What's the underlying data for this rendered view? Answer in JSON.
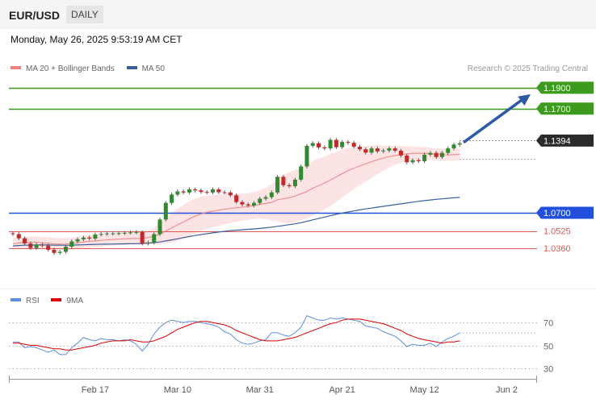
{
  "header": {
    "symbol": "EUR/USD",
    "timeframe": "DAILY"
  },
  "timestamp": "Monday, May 26, 2025 9:53:19 AM CET",
  "legend": {
    "ma20": "MA 20 + Bollinger Bands",
    "ma50": "MA 50",
    "ma20_color": "#f08080",
    "ma50_color": "#3a5f9f",
    "band_color": "#fde4e4"
  },
  "credit": "Research © 2025 Trading Central",
  "rsi_legend": {
    "rsi": "RSI",
    "ma9": "9MA",
    "rsi_color": "#5b8fe0",
    "ma9_color": "#e00000"
  },
  "chart_data": {
    "type": "candlestick",
    "start_date": "2025-01-27",
    "ylim": [
      1.005,
      1.2
    ],
    "levels": [
      {
        "label": "1.1900",
        "value": 1.19,
        "color": "#3c9a1c",
        "style": "solid"
      },
      {
        "label": "1.1700",
        "value": 1.17,
        "color": "#3c9a1c",
        "style": "solid"
      },
      {
        "label": "1.1394",
        "value": 1.1394,
        "color": "#333333",
        "style": "dotted"
      },
      {
        "label": "1.0700",
        "value": 1.07,
        "color": "#1f4fdb",
        "style": "solid"
      },
      {
        "label": "1.0525",
        "value": 1.0525,
        "color": "#e05555",
        "style": "thin"
      },
      {
        "label": "1.0360",
        "value": 1.036,
        "color": "#e05555",
        "style": "thin"
      }
    ],
    "x_ticks": [
      "Feb 17",
      "Mar 10",
      "Mar 31",
      "Apr 21",
      "May 12",
      "Jun 2"
    ],
    "closes": [
      1.0495,
      1.0455,
      1.0405,
      1.0362,
      1.0395,
      1.0385,
      1.0345,
      1.0315,
      1.0325,
      1.0375,
      1.0425,
      1.0445,
      1.0462,
      1.0452,
      1.0492,
      1.0498,
      1.0502,
      1.0502,
      1.0505,
      1.0508,
      1.0512,
      1.0515,
      1.0405,
      1.0415,
      1.0495,
      1.0635,
      1.0795,
      1.0875,
      1.0905,
      1.0895,
      1.0925,
      1.0915,
      1.09,
      1.0895,
      1.0925,
      1.0897,
      1.0895,
      1.0868,
      1.0803,
      1.078,
      1.077,
      1.0795,
      1.0835,
      1.085,
      1.0895,
      1.1045,
      1.0965,
      1.0955,
      1.1018,
      1.1145,
      1.1343,
      1.1368,
      1.1328,
      1.1318,
      1.14,
      1.133,
      1.138,
      1.1372,
      1.1335,
      1.131,
      1.1278,
      1.1318,
      1.129,
      1.1298,
      1.1318,
      1.1296,
      1.125,
      1.1185,
      1.1205,
      1.1195,
      1.1258,
      1.1275,
      1.1235,
      1.1275,
      1.1318,
      1.1355,
      1.1367
    ],
    "ma20": [
      1.0402,
      1.041,
      1.0415,
      1.0418,
      1.0418,
      1.0412,
      1.0408,
      1.0402,
      1.0398,
      1.04,
      1.0405,
      1.0412,
      1.042,
      1.0425,
      1.043,
      1.0435,
      1.044,
      1.0444,
      1.0448,
      1.0451,
      1.0452,
      1.0452,
      1.0455,
      1.0462,
      1.0475,
      1.0495,
      1.0525,
      1.0555,
      1.0585,
      1.0612,
      1.0642,
      1.0668,
      1.069,
      1.0705,
      1.0715,
      1.0725,
      1.0735,
      1.0742,
      1.0748,
      1.0754,
      1.076,
      1.0768,
      1.0782,
      1.079,
      1.08,
      1.0825,
      1.0835,
      1.0845,
      1.086,
      1.0882,
      1.0905,
      1.0935,
      1.096,
      1.0985,
      1.1015,
      1.1045,
      1.1075,
      1.1105,
      1.1128,
      1.115,
      1.117,
      1.119,
      1.121,
      1.1225,
      1.124,
      1.125,
      1.126,
      1.1265,
      1.127,
      1.1272,
      1.127,
      1.1266,
      1.1262,
      1.1258,
      1.1256,
      1.1258,
      1.126
    ],
    "ma50": [
      1.0382,
      1.0386,
      1.0389,
      1.039,
      1.0391,
      1.0392,
      1.0391,
      1.039,
      1.0389,
      1.0388,
      1.0389,
      1.0391,
      1.0393,
      1.0395,
      1.0397,
      1.0398,
      1.0399,
      1.04,
      1.0401,
      1.0402,
      1.0403,
      1.0404,
      1.0405,
      1.0409,
      1.0414,
      1.042,
      1.043,
      1.044,
      1.045,
      1.0462,
      1.0472,
      1.0482,
      1.0491,
      1.0499,
      1.0507,
      1.0515,
      1.0522,
      1.0528,
      1.0533,
      1.0537,
      1.0541,
      1.0545,
      1.055,
      1.0556,
      1.0562,
      1.057,
      1.0578,
      1.0586,
      1.0594,
      1.0605,
      1.0618,
      1.0632,
      1.0645,
      1.0658,
      1.0672,
      1.0685,
      1.0697,
      1.0708,
      1.0718,
      1.0728,
      1.0737,
      1.0745,
      1.0754,
      1.0762,
      1.077,
      1.0778,
      1.0786,
      1.0794,
      1.0802,
      1.081,
      1.0817,
      1.0823,
      1.0829,
      1.0834,
      1.0839,
      1.0844,
      1.0848
    ],
    "band_width": [
      0.0055,
      0.0055,
      0.0055,
      0.0056,
      0.0056,
      0.0057,
      0.0058,
      0.0058,
      0.0058,
      0.0058,
      0.0058,
      0.0058,
      0.0058,
      0.0058,
      0.0058,
      0.0058,
      0.0058,
      0.0058,
      0.0058,
      0.0058,
      0.0058,
      0.0058,
      0.006,
      0.0065,
      0.008,
      0.01,
      0.012,
      0.014,
      0.0155,
      0.0165,
      0.017,
      0.0168,
      0.0165,
      0.016,
      0.0155,
      0.015,
      0.0145,
      0.014,
      0.0135,
      0.013,
      0.0128,
      0.0128,
      0.0135,
      0.015,
      0.0175,
      0.0205,
      0.023,
      0.0245,
      0.025,
      0.0255,
      0.026,
      0.0262,
      0.026,
      0.0255,
      0.025,
      0.024,
      0.023,
      0.0215,
      0.02,
      0.0185,
      0.017,
      0.0155,
      0.014,
      0.012,
      0.0105,
      0.009,
      0.008,
      0.0072,
      0.0068,
      0.0065,
      0.0062,
      0.006,
      0.0058,
      0.0057,
      0.0057,
      0.0057,
      0.0057
    ],
    "rsi": {
      "ticks": [
        70,
        50,
        30
      ],
      "ylim": [
        25,
        80
      ],
      "values": [
        53,
        53,
        48,
        49,
        48,
        46,
        44,
        46,
        42,
        42,
        48,
        52,
        57,
        55,
        54,
        56,
        55,
        55,
        54,
        55,
        54,
        51,
        45,
        51,
        60,
        66,
        70,
        72,
        71,
        70,
        71,
        71,
        70,
        69,
        68,
        66,
        62,
        60,
        55,
        52,
        51,
        52,
        54,
        55,
        61,
        61,
        59,
        58,
        61,
        66,
        76,
        74,
        72,
        72,
        74,
        73,
        74,
        73,
        72,
        71,
        67,
        66,
        65,
        62,
        60,
        58,
        54,
        49,
        51,
        50,
        50,
        52,
        49,
        53,
        56,
        58,
        61
      ],
      "ma9": [
        52,
        52,
        51,
        50,
        50,
        49,
        48,
        47,
        47,
        46,
        46,
        47,
        48,
        49,
        50,
        52,
        53,
        54,
        54,
        54,
        55,
        54,
        53,
        53,
        54,
        56,
        58,
        61,
        64,
        66,
        68,
        70,
        71,
        71,
        70,
        69,
        68,
        66,
        63,
        61,
        59,
        57,
        55,
        54,
        54,
        54,
        55,
        56,
        57,
        59,
        61,
        63,
        65,
        67,
        69,
        70,
        72,
        73,
        73,
        73,
        72,
        71,
        70,
        69,
        67,
        65,
        63,
        60,
        58,
        56,
        55,
        54,
        53,
        52,
        53,
        53,
        54
      ]
    }
  }
}
